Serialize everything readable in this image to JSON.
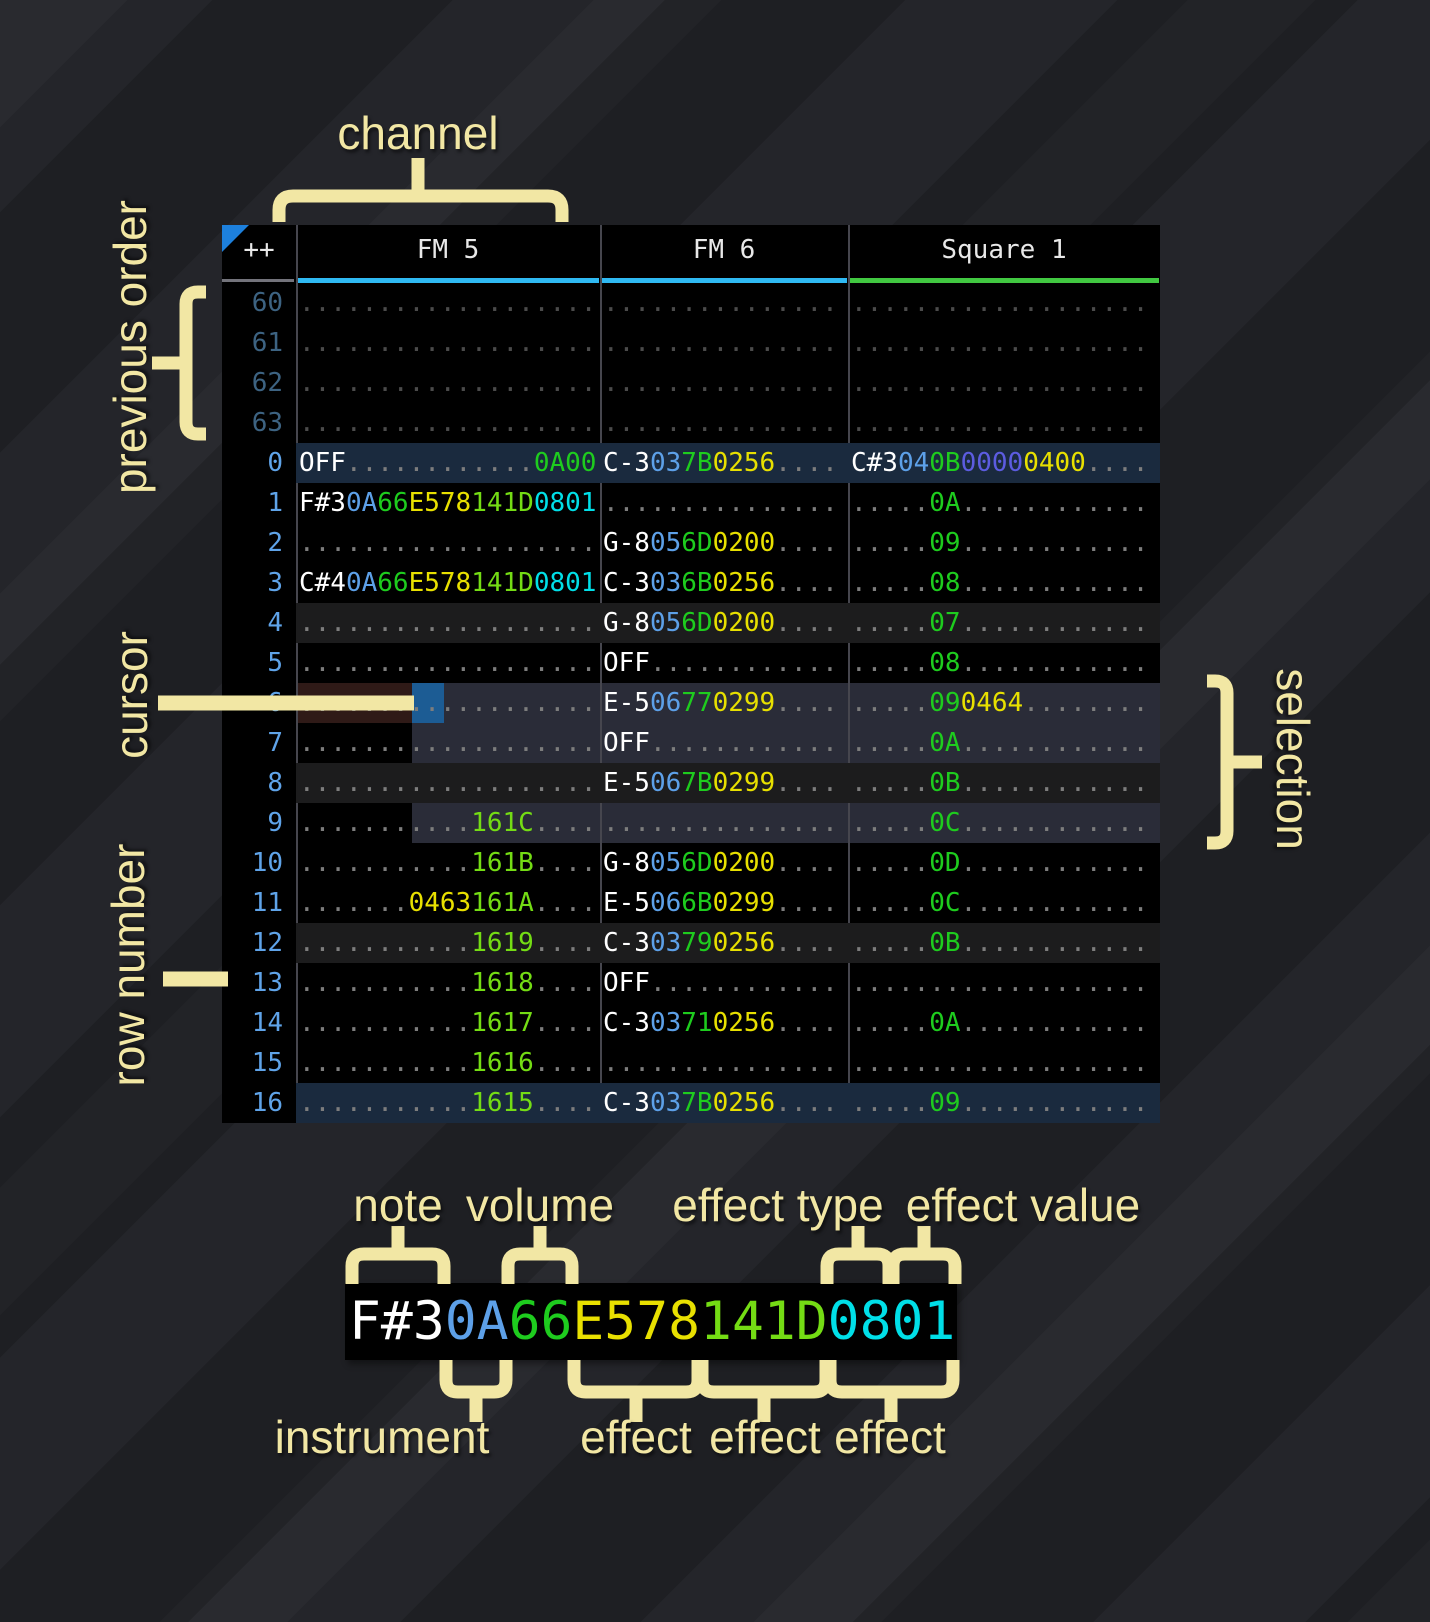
{
  "annotations": {
    "channel": "channel",
    "previous_order": "previous order",
    "cursor": "cursor",
    "row_number": "row number",
    "selection": "selection"
  },
  "breakdown_labels": {
    "note": "note",
    "volume": "volume",
    "effect_type": "effect type",
    "effect_value": "effect value",
    "instrument": "instrument",
    "effect1": "effect",
    "effect2": "effect",
    "effect3": "effect"
  },
  "colors": {
    "canvas_bg": "#26272c",
    "table_bg": "#000000",
    "label_yellow": "#f2e7a4",
    "header_text": "#e8e8e8",
    "grid_line": "#46464e",
    "row_num": "#5fa3e8",
    "row_num_dim": "#3d6382",
    "note": "#ffffff",
    "ins": "#5da0e8",
    "green": "#1ecc1e",
    "yellow": "#e8e000",
    "lime": "#74dc14",
    "cyan": "#00dfe8",
    "blue": "#5c5ce0",
    "dot": "#7d7d7d",
    "dot_dim": "#4b4b4b",
    "hl_major": "#1a2a3e",
    "hl_minor": "#1c1c1d",
    "selection": "#2a2c38",
    "cursor": "#1c5c94",
    "cursor_row_shade": "#2f1a17",
    "corner_triangle": "#1d80dd",
    "breakdown_bg": "#000000"
  },
  "tracker": {
    "corner_label": "++",
    "channels": [
      {
        "key": "fm5",
        "name": "FM 5",
        "underline_color": "#2fb9f2"
      },
      {
        "key": "fm6",
        "name": "FM 6",
        "underline_color": "#2fb9f2"
      },
      {
        "key": "square1",
        "name": "Square 1",
        "underline_color": "#41c841"
      }
    ],
    "rows": [
      {
        "num": "60",
        "dim": true,
        "cells": [
          [
            [
              "...................",
              "dot"
            ]
          ],
          [
            [
              "...............",
              "dot"
            ]
          ],
          [
            [
              "...................",
              "dot"
            ]
          ]
        ]
      },
      {
        "num": "61",
        "dim": true,
        "cells": [
          [
            [
              "...................",
              "dot"
            ]
          ],
          [
            [
              "...............",
              "dot"
            ]
          ],
          [
            [
              "...................",
              "dot"
            ]
          ]
        ]
      },
      {
        "num": "62",
        "dim": true,
        "cells": [
          [
            [
              "...................",
              "dot"
            ]
          ],
          [
            [
              "...............",
              "dot"
            ]
          ],
          [
            [
              "...................",
              "dot"
            ]
          ]
        ]
      },
      {
        "num": "63",
        "dim": true,
        "cells": [
          [
            [
              "...................",
              "dot"
            ]
          ],
          [
            [
              "...............",
              "dot"
            ]
          ],
          [
            [
              "...................",
              "dot"
            ]
          ]
        ]
      },
      {
        "num": "0",
        "hl": "major",
        "cells": [
          [
            [
              "OFF",
              "note"
            ],
            [
              "............",
              "dot"
            ],
            [
              "0A00",
              "green"
            ]
          ],
          [
            [
              "C-3",
              "note"
            ],
            [
              "03",
              "ins"
            ],
            [
              "7B",
              "green"
            ],
            [
              "0256",
              "yellow"
            ],
            [
              "....",
              "dot"
            ]
          ],
          [
            [
              "C#3",
              "note"
            ],
            [
              "04",
              "ins"
            ],
            [
              "0B",
              "green"
            ],
            [
              "0000",
              "blue"
            ],
            [
              "0400",
              "yellow"
            ],
            [
              "....",
              "dot"
            ]
          ]
        ]
      },
      {
        "num": "1",
        "cells": [
          [
            [
              "F#3",
              "note"
            ],
            [
              "0A",
              "ins"
            ],
            [
              "66",
              "green"
            ],
            [
              "E578",
              "yellow"
            ],
            [
              "141D",
              "lime"
            ],
            [
              "0801",
              "cyan"
            ]
          ],
          [
            [
              "...............",
              "dot"
            ]
          ],
          [
            [
              ".....",
              "dot"
            ],
            [
              "0A",
              "green"
            ],
            [
              "............",
              "dot"
            ]
          ]
        ]
      },
      {
        "num": "2",
        "cells": [
          [
            [
              "...................",
              "dot"
            ]
          ],
          [
            [
              "G-8",
              "note"
            ],
            [
              "05",
              "ins"
            ],
            [
              "6D",
              "green"
            ],
            [
              "0200",
              "yellow"
            ],
            [
              "....",
              "dot"
            ]
          ],
          [
            [
              ".....",
              "dot"
            ],
            [
              "09",
              "green"
            ],
            [
              "............",
              "dot"
            ]
          ]
        ]
      },
      {
        "num": "3",
        "cells": [
          [
            [
              "C#4",
              "note"
            ],
            [
              "0A",
              "ins"
            ],
            [
              "66",
              "green"
            ],
            [
              "E578",
              "yellow"
            ],
            [
              "141D",
              "lime"
            ],
            [
              "0801",
              "cyan"
            ]
          ],
          [
            [
              "C-3",
              "note"
            ],
            [
              "03",
              "ins"
            ],
            [
              "6B",
              "green"
            ],
            [
              "0256",
              "yellow"
            ],
            [
              "....",
              "dot"
            ]
          ],
          [
            [
              ".....",
              "dot"
            ],
            [
              "08",
              "green"
            ],
            [
              "............",
              "dot"
            ]
          ]
        ]
      },
      {
        "num": "4",
        "hl": "minor",
        "cells": [
          [
            [
              "...................",
              "dot"
            ]
          ],
          [
            [
              "G-8",
              "note"
            ],
            [
              "05",
              "ins"
            ],
            [
              "6D",
              "green"
            ],
            [
              "0200",
              "yellow"
            ],
            [
              "....",
              "dot"
            ]
          ],
          [
            [
              ".....",
              "dot"
            ],
            [
              "07",
              "green"
            ],
            [
              "............",
              "dot"
            ]
          ]
        ]
      },
      {
        "num": "5",
        "cells": [
          [
            [
              "...................",
              "dot"
            ]
          ],
          [
            [
              "OFF",
              "note"
            ],
            [
              "............",
              "dot"
            ]
          ],
          [
            [
              ".....",
              "dot"
            ],
            [
              "08",
              "green"
            ],
            [
              "............",
              "dot"
            ]
          ]
        ]
      },
      {
        "num": "6",
        "cells": [
          [
            [
              "...................",
              "dot"
            ]
          ],
          [
            [
              "E-5",
              "note"
            ],
            [
              "06",
              "ins"
            ],
            [
              "77",
              "green"
            ],
            [
              "0299",
              "yellow"
            ],
            [
              "....",
              "dot"
            ]
          ],
          [
            [
              ".....",
              "dot"
            ],
            [
              "09",
              "green"
            ],
            [
              "0464",
              "yellow"
            ],
            [
              "........",
              "dot"
            ]
          ]
        ]
      },
      {
        "num": "7",
        "cells": [
          [
            [
              "...................",
              "dot"
            ]
          ],
          [
            [
              "OFF",
              "note"
            ],
            [
              "............",
              "dot"
            ]
          ],
          [
            [
              ".....",
              "dot"
            ],
            [
              "0A",
              "green"
            ],
            [
              "............",
              "dot"
            ]
          ]
        ]
      },
      {
        "num": "8",
        "hl": "minor",
        "cells": [
          [
            [
              "...................",
              "dot"
            ]
          ],
          [
            [
              "E-5",
              "note"
            ],
            [
              "06",
              "ins"
            ],
            [
              "7B",
              "green"
            ],
            [
              "0299",
              "yellow"
            ],
            [
              "....",
              "dot"
            ]
          ],
          [
            [
              ".....",
              "dot"
            ],
            [
              "0B",
              "green"
            ],
            [
              "............",
              "dot"
            ]
          ]
        ]
      },
      {
        "num": "9",
        "cells": [
          [
            [
              "...........",
              "dot"
            ],
            [
              "161C",
              "lime"
            ],
            [
              "....",
              "dot"
            ]
          ],
          [
            [
              "...............",
              "dot"
            ]
          ],
          [
            [
              ".....",
              "dot"
            ],
            [
              "0C",
              "green"
            ],
            [
              "............",
              "dot"
            ]
          ]
        ]
      },
      {
        "num": "10",
        "cells": [
          [
            [
              "...........",
              "dot"
            ],
            [
              "161B",
              "lime"
            ],
            [
              "....",
              "dot"
            ]
          ],
          [
            [
              "G-8",
              "note"
            ],
            [
              "05",
              "ins"
            ],
            [
              "6D",
              "green"
            ],
            [
              "0200",
              "yellow"
            ],
            [
              "....",
              "dot"
            ]
          ],
          [
            [
              ".....",
              "dot"
            ],
            [
              "0D",
              "green"
            ],
            [
              "............",
              "dot"
            ]
          ]
        ]
      },
      {
        "num": "11",
        "cells": [
          [
            [
              ".......",
              "dot"
            ],
            [
              "0463",
              "yellow"
            ],
            [
              "161A",
              "lime"
            ],
            [
              "....",
              "dot"
            ]
          ],
          [
            [
              "E-5",
              "note"
            ],
            [
              "06",
              "ins"
            ],
            [
              "6B",
              "green"
            ],
            [
              "0299",
              "yellow"
            ],
            [
              "....",
              "dot"
            ]
          ],
          [
            [
              ".....",
              "dot"
            ],
            [
              "0C",
              "green"
            ],
            [
              "............",
              "dot"
            ]
          ]
        ]
      },
      {
        "num": "12",
        "hl": "minor",
        "cells": [
          [
            [
              "...........",
              "dot"
            ],
            [
              "1619",
              "lime"
            ],
            [
              "....",
              "dot"
            ]
          ],
          [
            [
              "C-3",
              "note"
            ],
            [
              "03",
              "ins"
            ],
            [
              "79",
              "green"
            ],
            [
              "0256",
              "yellow"
            ],
            [
              "....",
              "dot"
            ]
          ],
          [
            [
              ".....",
              "dot"
            ],
            [
              "0B",
              "green"
            ],
            [
              "............",
              "dot"
            ]
          ]
        ]
      },
      {
        "num": "13",
        "cells": [
          [
            [
              "...........",
              "dot"
            ],
            [
              "1618",
              "lime"
            ],
            [
              "....",
              "dot"
            ]
          ],
          [
            [
              "OFF",
              "note"
            ],
            [
              "............",
              "dot"
            ]
          ],
          [
            [
              "...................",
              "dot"
            ]
          ]
        ]
      },
      {
        "num": "14",
        "cells": [
          [
            [
              "...........",
              "dot"
            ],
            [
              "1617",
              "lime"
            ],
            [
              "....",
              "dot"
            ]
          ],
          [
            [
              "C-3",
              "note"
            ],
            [
              "03",
              "ins"
            ],
            [
              "71",
              "green"
            ],
            [
              "0256",
              "yellow"
            ],
            [
              "....",
              "dot"
            ]
          ],
          [
            [
              ".....",
              "dot"
            ],
            [
              "0A",
              "green"
            ],
            [
              "............",
              "dot"
            ]
          ]
        ]
      },
      {
        "num": "15",
        "cells": [
          [
            [
              "...........",
              "dot"
            ],
            [
              "1616",
              "lime"
            ],
            [
              "....",
              "dot"
            ]
          ],
          [
            [
              "...............",
              "dot"
            ]
          ],
          [
            [
              "...................",
              "dot"
            ]
          ]
        ]
      },
      {
        "num": "16",
        "hl": "major",
        "cells": [
          [
            [
              "...........",
              "dot"
            ],
            [
              "1615",
              "lime"
            ],
            [
              "....",
              "dot"
            ]
          ],
          [
            [
              "C-3",
              "note"
            ],
            [
              "03",
              "ins"
            ],
            [
              "7B",
              "green"
            ],
            [
              "0256",
              "yellow"
            ],
            [
              "....",
              "dot"
            ]
          ],
          [
            [
              ".....",
              "dot"
            ],
            [
              "09",
              "green"
            ],
            [
              "............",
              "dot"
            ]
          ]
        ]
      }
    ]
  },
  "breakdown": {
    "segments": [
      [
        "F#3",
        "note"
      ],
      [
        "0A",
        "ins"
      ],
      [
        "66",
        "green"
      ],
      [
        "E578",
        "yellow"
      ],
      [
        "141D",
        "lime"
      ],
      [
        "0801",
        "cyan"
      ]
    ]
  }
}
